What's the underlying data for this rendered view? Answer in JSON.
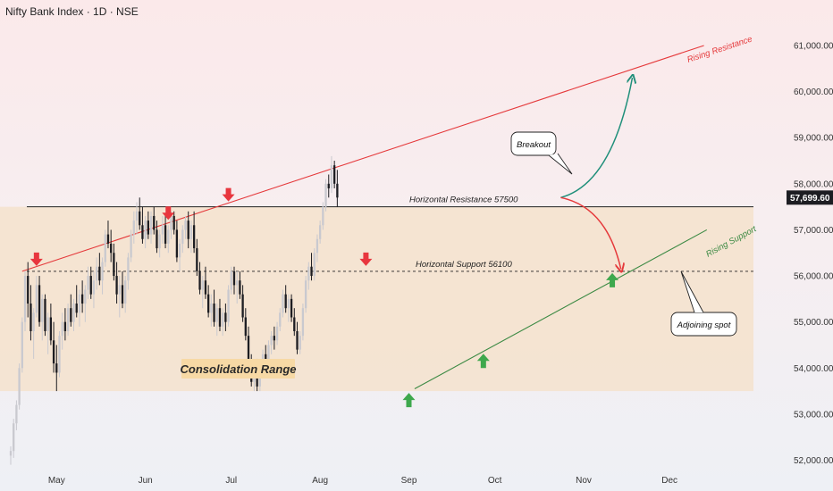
{
  "header": {
    "title": "Nifty Bank Index · 1D · NSE"
  },
  "colors": {
    "bull": "#c9c9cf",
    "bear": "#1d1d22",
    "resistance": "#e5393b",
    "support": "#3c8a44",
    "range_fill": "#f5e2cc",
    "arrow_down": "#e8363e",
    "arrow_up": "#3ea84d",
    "green_curve": "#1f8f7a",
    "red_curve": "#e5393b",
    "price_tag_bg": "#1d1d22",
    "label_box_bg": "#f7d9a5"
  },
  "chart_data": {
    "type": "candlestick",
    "title": "Nifty Bank Index · 1D · NSE",
    "ylim": [
      51700,
      61600
    ],
    "y_ticks": [
      52000,
      53000,
      54000,
      55000,
      56000,
      57000,
      58000,
      59000,
      60000,
      61000
    ],
    "y_tick_labels": [
      "52,000.00",
      "53,000.00",
      "54,000.00",
      "55,000.00",
      "56,000.00",
      "57,000.00",
      "58,000.00",
      "59,000.00",
      "60,000.00",
      "61,000.00"
    ],
    "x_ticks": [
      {
        "label": "May",
        "day": 16
      },
      {
        "label": "Jun",
        "day": 47
      },
      {
        "label": "Jul",
        "day": 77
      },
      {
        "label": "Aug",
        "day": 108
      },
      {
        "label": "Sep",
        "day": 139
      },
      {
        "label": "Oct",
        "day": 169
      },
      {
        "label": "Nov",
        "day": 200
      },
      {
        "label": "Dec",
        "day": 230
      }
    ],
    "last_price": 57699.6,
    "last_price_label": "57,699.60",
    "candles": [
      [
        52100,
        52300,
        51900,
        52200
      ],
      [
        52200,
        52900,
        52050,
        52800
      ],
      [
        52800,
        53300,
        52650,
        53200
      ],
      [
        53200,
        54100,
        53100,
        54000
      ],
      [
        54000,
        55100,
        53900,
        55000
      ],
      [
        55000,
        56100,
        54800,
        56000
      ],
      [
        56000,
        56300,
        55100,
        55400
      ],
      [
        55400,
        55800,
        54600,
        54800
      ],
      [
        54800,
        55300,
        54200,
        55200
      ],
      [
        55200,
        56000,
        55100,
        55800
      ],
      [
        55800,
        56000,
        54900,
        55000
      ],
      [
        55000,
        55600,
        54600,
        55500
      ],
      [
        55500,
        55600,
        54700,
        54800
      ],
      [
        54800,
        55200,
        54300,
        55100
      ],
      [
        55100,
        55400,
        54500,
        54600
      ],
      [
        54600,
        55000,
        53900,
        54100
      ],
      [
        54100,
        54500,
        53500,
        53900
      ],
      [
        53900,
        54800,
        53800,
        54700
      ],
      [
        54700,
        55200,
        54400,
        55000
      ],
      [
        55000,
        55300,
        54600,
        54800
      ],
      [
        54800,
        55400,
        54700,
        55300
      ],
      [
        55300,
        55600,
        54900,
        55000
      ],
      [
        55000,
        55500,
        54800,
        55400
      ],
      [
        55400,
        55800,
        55100,
        55200
      ],
      [
        55200,
        55700,
        54900,
        55600
      ],
      [
        55600,
        55900,
        55200,
        55400
      ],
      [
        55400,
        55800,
        55000,
        55700
      ],
      [
        55700,
        56200,
        55500,
        56000
      ],
      [
        56000,
        56200,
        55500,
        55600
      ],
      [
        55600,
        56100,
        55300,
        55900
      ],
      [
        55900,
        56400,
        55700,
        56200
      ],
      [
        56200,
        56500,
        55800,
        55900
      ],
      [
        55900,
        56400,
        55600,
        56300
      ],
      [
        56300,
        57000,
        56200,
        56900
      ],
      [
        56900,
        57200,
        56600,
        56700
      ],
      [
        56700,
        57000,
        56300,
        56500
      ],
      [
        56500,
        56700,
        55900,
        56000
      ],
      [
        56000,
        56300,
        55400,
        55600
      ],
      [
        55600,
        56000,
        55100,
        55800
      ],
      [
        55800,
        56100,
        55300,
        55400
      ],
      [
        55400,
        56000,
        55200,
        55900
      ],
      [
        55900,
        56500,
        55700,
        56400
      ],
      [
        56400,
        57000,
        56300,
        56900
      ],
      [
        56900,
        57400,
        56700,
        57200
      ],
      [
        57200,
        57600,
        56900,
        57400
      ],
      [
        57400,
        57700,
        57000,
        57100
      ],
      [
        57100,
        57500,
        56700,
        56800
      ],
      [
        56800,
        57300,
        56600,
        57200
      ],
      [
        57200,
        57400,
        56800,
        56900
      ],
      [
        56900,
        57400,
        56700,
        57300
      ],
      [
        57300,
        57500,
        56900,
        57000
      ],
      [
        57000,
        57200,
        56500,
        56600
      ],
      [
        56600,
        57000,
        56400,
        56900
      ],
      [
        56900,
        57300,
        56700,
        57100
      ],
      [
        57100,
        57300,
        56600,
        56700
      ],
      [
        56700,
        57100,
        56500,
        57000
      ],
      [
        57000,
        57400,
        56800,
        57300
      ],
      [
        57300,
        57400,
        56900,
        57000
      ],
      [
        57000,
        57200,
        56300,
        56400
      ],
      [
        56400,
        56800,
        56100,
        56700
      ],
      [
        56700,
        57100,
        56500,
        57000
      ],
      [
        57000,
        57300,
        56800,
        57200
      ],
      [
        57200,
        57400,
        56600,
        56800
      ],
      [
        56800,
        57200,
        56500,
        57100
      ],
      [
        57100,
        57400,
        56500,
        56600
      ],
      [
        56600,
        56800,
        56000,
        56100
      ],
      [
        56100,
        56300,
        55600,
        55700
      ],
      [
        55700,
        56000,
        55300,
        55900
      ],
      [
        55900,
        56200,
        55500,
        55600
      ],
      [
        55600,
        55800,
        55100,
        55200
      ],
      [
        55200,
        55600,
        54900,
        55400
      ],
      [
        55400,
        55700,
        54900,
        55000
      ],
      [
        55000,
        55400,
        54700,
        55300
      ],
      [
        55300,
        55500,
        54800,
        54900
      ],
      [
        54900,
        55300,
        54700,
        55200
      ],
      [
        55200,
        55400,
        54800,
        55000
      ],
      [
        55000,
        55800,
        54900,
        55700
      ],
      [
        55700,
        56200,
        55600,
        56100
      ],
      [
        56100,
        56200,
        55600,
        55800
      ],
      [
        55800,
        56100,
        55400,
        55900
      ],
      [
        55900,
        56100,
        55500,
        55600
      ],
      [
        55600,
        55800,
        55000,
        55100
      ],
      [
        55100,
        55300,
        54600,
        54700
      ],
      [
        54700,
        54900,
        54100,
        54200
      ],
      [
        54200,
        54300,
        53600,
        53700
      ],
      [
        53700,
        54100,
        53500,
        54000
      ],
      [
        54000,
        54200,
        53500,
        53600
      ],
      [
        53600,
        54000,
        53500,
        53900
      ],
      [
        53900,
        54400,
        53800,
        54300
      ],
      [
        54300,
        54500,
        54000,
        54100
      ],
      [
        54100,
        54600,
        54000,
        54500
      ],
      [
        54500,
        54800,
        54300,
        54700
      ],
      [
        54700,
        54900,
        54400,
        54600
      ],
      [
        54600,
        55000,
        54500,
        54900
      ],
      [
        54900,
        55300,
        54800,
        55200
      ],
      [
        55200,
        55700,
        55100,
        55600
      ],
      [
        55600,
        55800,
        55200,
        55300
      ],
      [
        55300,
        55600,
        55000,
        55500
      ],
      [
        55500,
        55600,
        55000,
        55100
      ],
      [
        55100,
        55300,
        54700,
        54800
      ],
      [
        54800,
        55000,
        54300,
        54400
      ],
      [
        54400,
        54800,
        54300,
        54700
      ],
      [
        54700,
        55400,
        54600,
        55300
      ],
      [
        55300,
        56000,
        55200,
        55900
      ],
      [
        55900,
        56300,
        55700,
        56200
      ],
      [
        56200,
        56500,
        55900,
        56000
      ],
      [
        56000,
        56600,
        55900,
        56500
      ],
      [
        56500,
        56900,
        56300,
        56800
      ],
      [
        56800,
        57200,
        56700,
        57100
      ],
      [
        57100,
        57600,
        57000,
        57500
      ],
      [
        57500,
        58100,
        57400,
        58000
      ],
      [
        58000,
        58200,
        57700,
        57900
      ],
      [
        57900,
        58600,
        57800,
        58400
      ],
      [
        58400,
        58500,
        57900,
        58000
      ],
      [
        58000,
        58300,
        57500,
        57700
      ]
    ],
    "levels": {
      "horizontal_resistance": 57500,
      "horizontal_support": 56100,
      "range_top": 57500,
      "range_bottom": 53500
    },
    "trendlines": {
      "rising_resistance": {
        "p1": [
          4,
          56100
        ],
        "p2": [
          242,
          61000
        ]
      },
      "rising_support": {
        "p1": [
          141,
          53550
        ],
        "p2": [
          243,
          57000
        ]
      }
    },
    "annotations": {
      "horizontal_resistance_label": "Horizontal Resistance 57500",
      "horizontal_support_label": "Horizontal Support 56100",
      "consolidation_label": "Consolidation Range",
      "rising_resistance_label": "Rising Resistance",
      "rising_support_label": "Rising Support",
      "breakout_label": "Breakout",
      "adjoining_label": "Adjoining spot"
    },
    "down_arrows": [
      [
        9,
        56100
      ],
      [
        55,
        57100
      ],
      [
        76,
        57500
      ],
      [
        124,
        56100
      ]
    ],
    "up_arrows": [
      [
        139,
        53500
      ],
      [
        165,
        54350
      ],
      [
        210,
        56100
      ]
    ],
    "projection_up": {
      "from": [
        192,
        57699.6
      ],
      "ctrl": [
        210,
        58000
      ],
      "to": [
        217,
        60300
      ]
    },
    "projection_down": {
      "from": [
        192,
        57699.6
      ],
      "ctrl": [
        208,
        57500
      ],
      "to": [
        213,
        56150
      ]
    }
  }
}
